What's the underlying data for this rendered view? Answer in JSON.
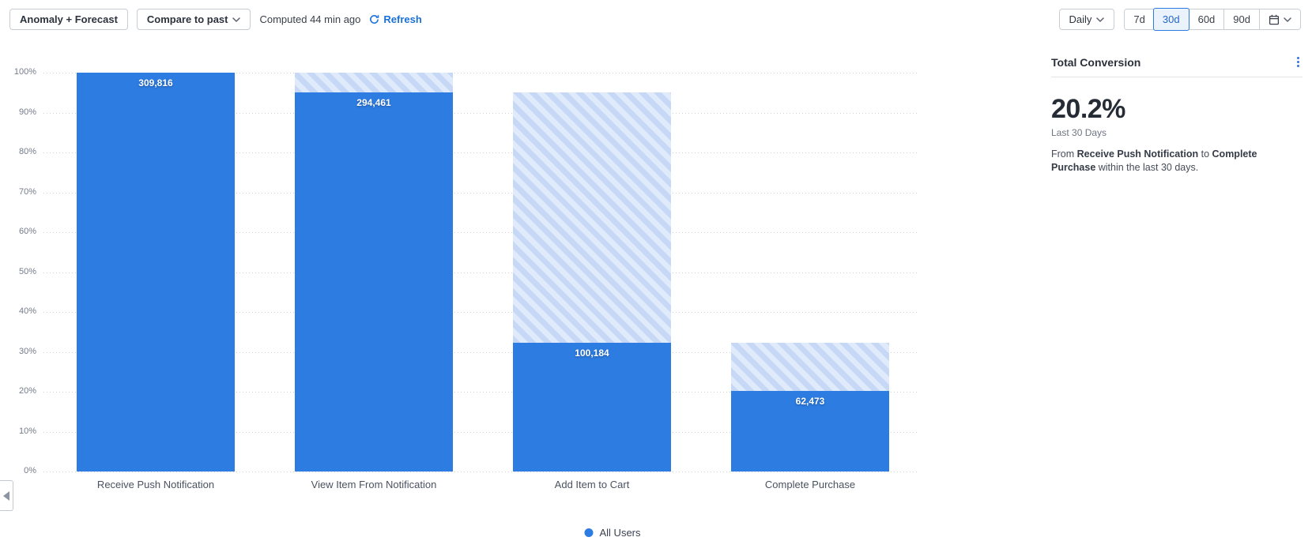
{
  "toolbar": {
    "anomaly_forecast_label": "Anomaly + Forecast",
    "compare_label": "Compare to past",
    "computed_text": "Computed 44 min ago",
    "refresh_label": "Refresh",
    "granularity_selected": "Daily",
    "ranges": [
      "7d",
      "30d",
      "60d",
      "90d"
    ],
    "selected_range": "30d"
  },
  "chart_data": {
    "type": "bar",
    "subtype": "funnel",
    "title": "",
    "xlabel": "",
    "ylabel": "",
    "categories": [
      "Receive Push Notification",
      "View Item From Notification",
      "Add Item to Cart",
      "Complete Purchase"
    ],
    "series": [
      {
        "name": "All Users",
        "color": "#2d7ce1",
        "values": [
          309816,
          294461,
          100184,
          62473
        ],
        "value_labels": [
          "309,816",
          "294,461",
          "100,184",
          "62,473"
        ],
        "conversion_pct": [
          100,
          95.04,
          32.34,
          20.17
        ]
      }
    ],
    "y_ticks": [
      "0%",
      "10%",
      "20%",
      "30%",
      "40%",
      "50%",
      "60%",
      "70%",
      "80%",
      "90%",
      "100%"
    ],
    "ylim": [
      0,
      100
    ],
    "grid": "horizontal-dotted",
    "legend_position": "bottom-center",
    "dropoff_style": "hatched segment from previous step conversion down to current step conversion"
  },
  "side_panel": {
    "title": "Total Conversion",
    "value": "20.2%",
    "period": "Last 30 Days",
    "description": {
      "prefix": "From ",
      "from_step": "Receive Push Notification",
      "connector": " to ",
      "to_step": "Complete Purchase",
      "suffix": " within the last 30 days."
    }
  },
  "icons": {
    "refresh": "refresh-icon",
    "chevron_down": "chevron-down-icon",
    "calendar": "calendar-icon",
    "kebab": "kebab-menu-icon",
    "collapse": "chevron-left-icon"
  },
  "colors": {
    "bar_solid": "#2d7ce1",
    "hatch_stripe": "#c6d8f5",
    "hatch_bg": "#dfeafb",
    "accent_link": "#1a70d9",
    "selected_range_bg": "#eaf2fc",
    "selected_range_border": "#2d7ce1",
    "gridline": "#cdd0d5",
    "text_dark": "#2d333d",
    "text_gray": "#6e7683"
  }
}
